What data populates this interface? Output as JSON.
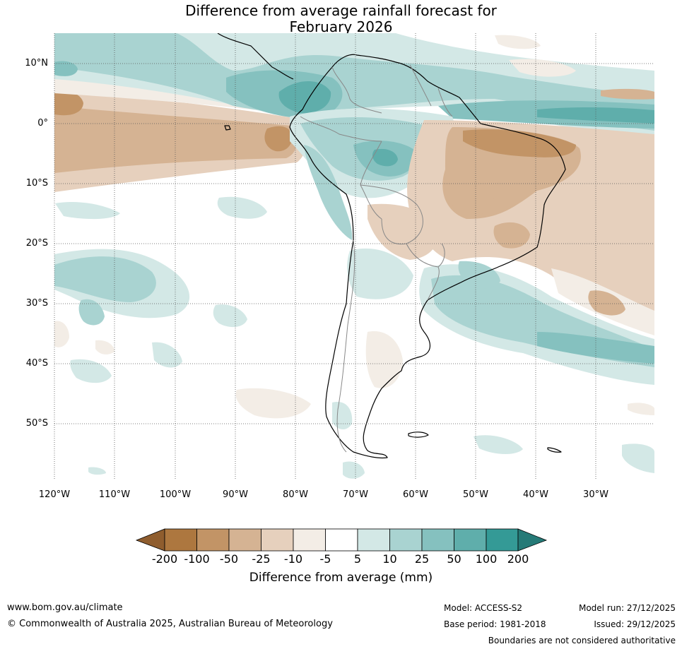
{
  "title": {
    "line1": "Difference from average rainfall forecast for",
    "line2": "February 2026"
  },
  "latitude_labels": [
    "10°N",
    "0°",
    "10°S",
    "20°S",
    "30°S",
    "40°S",
    "50°S"
  ],
  "longitude_labels": [
    "120°W",
    "110°W",
    "100°W",
    "90°W",
    "80°W",
    "70°W",
    "60°W",
    "50°W",
    "40°W",
    "30°W"
  ],
  "colorbar": {
    "tick_labels": [
      "-200",
      "-100",
      "-50",
      "-25",
      "-10",
      "-5",
      "5",
      "10",
      "25",
      "50",
      "100",
      "200"
    ],
    "colors": [
      "#8f5d2e",
      "#ad773f",
      "#c29466",
      "#d5b393",
      "#e6d0bd",
      "#f3ede6",
      "#ffffff",
      "#d3e8e6",
      "#a9d3d1",
      "#85c1bf",
      "#5faeab",
      "#349a96",
      "#257a77"
    ],
    "title": "Difference from average (mm)"
  },
  "footer": {
    "url": "www.bom.gov.au/climate",
    "copyright": "© Commonwealth of Australia 2025, Australian Bureau of Meteorology",
    "model": "Model: ACCESS-S2",
    "base_period": "Base period: 1981-2018",
    "model_run": "Model run: 27/12/2025",
    "issued": "Issued: 29/12/2025",
    "disclaimer": "Boundaries are not considered authoritative"
  }
}
